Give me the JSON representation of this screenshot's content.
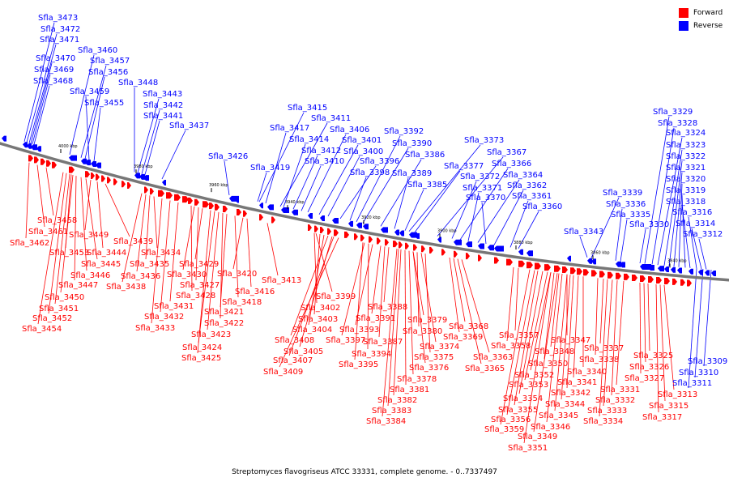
{
  "caption": "Streptomyces flavogriseus ATCC 33331, complete genome. - 0..7337497",
  "colors": {
    "forward": "#ff0000",
    "reverse": "#0000ff",
    "backbone": "#666666"
  },
  "legend": [
    {
      "key": "forward",
      "label": "Forward",
      "color": "#ff0000"
    },
    {
      "key": "reverse",
      "label": "Reverse",
      "color": "#0000ff"
    }
  ],
  "scale_ticks": [
    "4000 kbp",
    "3980 kbp",
    "3960 kbp",
    "3940 kbp",
    "3920 kbp",
    "3900 kbp",
    "3880 kbp",
    "3860 kbp",
    "3840 kbp"
  ],
  "reverse_labels": [
    "Sfla_3473",
    "Sfla_3472",
    "Sfla_3471",
    "Sfla_3470",
    "Sfla_3469",
    "Sfla_3468",
    "Sfla_3460",
    "Sfla_3457",
    "Sfla_3456",
    "Sfla_3459",
    "Sfla_3455",
    "Sfla_3448",
    "Sfla_3443",
    "Sfla_3442",
    "Sfla_3441",
    "Sfla_3437",
    "Sfla_3426",
    "Sfla_3419",
    "Sfla_3415",
    "Sfla_3417",
    "Sfla_3411",
    "Sfla_3414",
    "Sfla_3412",
    "Sfla_3410",
    "Sfla_3406",
    "Sfla_3401",
    "Sfla_3400",
    "Sfla_3396",
    "Sfla_3398",
    "Sfla_3392",
    "Sfla_3390",
    "Sfla_3386",
    "Sfla_3389",
    "Sfla_3385",
    "Sfla_3373",
    "Sfla_3377",
    "Sfla_3367",
    "Sfla_3372",
    "Sfla_3366",
    "Sfla_3371",
    "Sfla_3364",
    "Sfla_3370",
    "Sfla_3362",
    "Sfla_3361",
    "Sfla_3360",
    "Sfla_3343",
    "Sfla_3339",
    "Sfla_3336",
    "Sfla_3335",
    "Sfla_3330",
    "Sfla_3329",
    "Sfla_3328",
    "Sfla_3324",
    "Sfla_3323",
    "Sfla_3322",
    "Sfla_3321",
    "Sfla_3320",
    "Sfla_3319",
    "Sfla_3318",
    "Sfla_3316",
    "Sfla_3314",
    "Sfla_3312",
    "Sfla_3309",
    "Sfla_3310",
    "Sfla_3311"
  ],
  "forward_labels": [
    "Sfla_3458",
    "Sfla_3461",
    "Sfla_3462",
    "Sfla_3449",
    "Sfla_3453",
    "Sfla_3444",
    "Sfla_3439",
    "Sfla_3445",
    "Sfla_3446",
    "Sfla_3447",
    "Sfla_3450",
    "Sfla_3451",
    "Sfla_3452",
    "Sfla_3454",
    "Sfla_3434",
    "Sfla_3435",
    "Sfla_3436",
    "Sfla_3438",
    "Sfla_3429",
    "Sfla_3430",
    "Sfla_3427",
    "Sfla_3428",
    "Sfla_3431",
    "Sfla_3432",
    "Sfla_3433",
    "Sfla_3421",
    "Sfla_3422",
    "Sfla_3423",
    "Sfla_3424",
    "Sfla_3425",
    "Sfla_3420",
    "Sfla_3416",
    "Sfla_3418",
    "Sfla_3413",
    "Sfla_3399",
    "Sfla_3402",
    "Sfla_3403",
    "Sfla_3404",
    "Sfla_3408",
    "Sfla_3405",
    "Sfla_3407",
    "Sfla_3409",
    "Sfla_3388",
    "Sfla_3391",
    "Sfla_3393",
    "Sfla_3397",
    "Sfla_3394",
    "Sfla_3395",
    "Sfla_3387",
    "Sfla_3379",
    "Sfla_3380",
    "Sfla_3374",
    "Sfla_3375",
    "Sfla_3376",
    "Sfla_3378",
    "Sfla_3381",
    "Sfla_3382",
    "Sfla_3383",
    "Sfla_3384",
    "Sfla_3368",
    "Sfla_3369",
    "Sfla_3363",
    "Sfla_3365",
    "Sfla_3357",
    "Sfla_3358",
    "Sfla_3347",
    "Sfla_3348",
    "Sfla_3350",
    "Sfla_3352",
    "Sfla_3353",
    "Sfla_3354",
    "Sfla_3355",
    "Sfla_3356",
    "Sfla_3359",
    "Sfla_3340",
    "Sfla_3341",
    "Sfla_3342",
    "Sfla_3344",
    "Sfla_3345",
    "Sfla_3346",
    "Sfla_3349",
    "Sfla_3351",
    "Sfla_3337",
    "Sfla_3338",
    "Sfla_3331",
    "Sfla_3332",
    "Sfla_3333",
    "Sfla_3334",
    "Sfla_3325",
    "Sfla_3326",
    "Sfla_3327",
    "Sfla_3313",
    "Sfla_3315",
    "Sfla_3317"
  ]
}
